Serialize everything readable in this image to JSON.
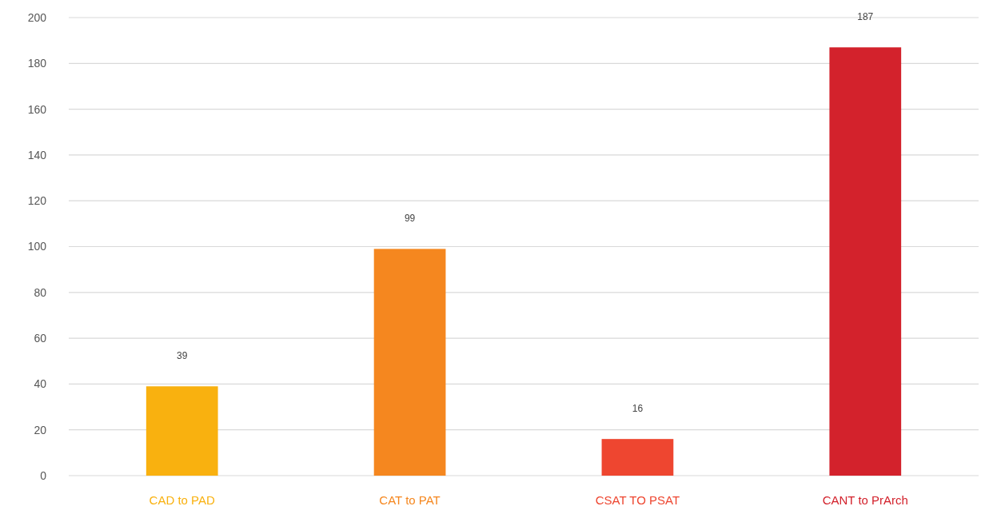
{
  "chart_data": {
    "type": "bar",
    "categories": [
      "CAD to PAD",
      "CAT to PAT",
      "CSAT TO PSAT",
      "CANT to PrArch"
    ],
    "values": [
      39,
      99,
      16,
      187
    ],
    "colors": [
      "#f9b10f",
      "#f5871f",
      "#ee4630",
      "#d3222c"
    ],
    "ylim": [
      0,
      200
    ],
    "yticks": [
      0,
      20,
      40,
      60,
      80,
      100,
      120,
      140,
      160,
      180,
      200
    ],
    "grid": "y",
    "data_labels": true
  }
}
